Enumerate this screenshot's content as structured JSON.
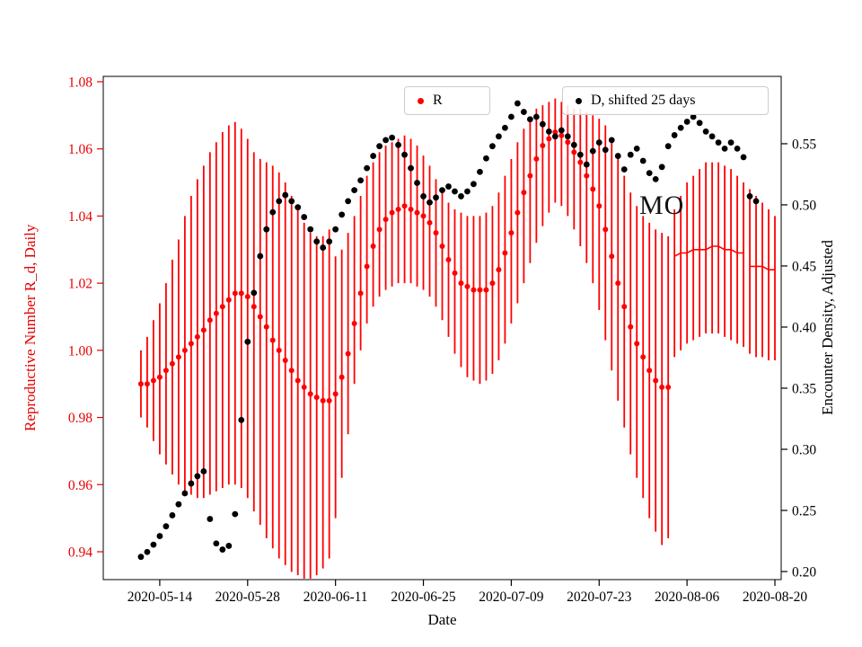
{
  "figure": {
    "background": "#ffffff"
  },
  "chart_data": {
    "type": "scatter",
    "title": "",
    "xlabel": "Date",
    "x_range": [
      "2020-05-05",
      "2020-08-21"
    ],
    "x_ticks": [
      "2020-05-14",
      "2020-05-28",
      "2020-06-11",
      "2020-06-25",
      "2020-07-09",
      "2020-07-23",
      "2020-08-06",
      "2020-08-20"
    ],
    "left_axis": {
      "label": "Reproductive Number R_d, Daily",
      "color": "#e60000",
      "range": [
        0.9317,
        1.0816
      ],
      "ticks": [
        0.94,
        0.96,
        0.98,
        1.0,
        1.02,
        1.04,
        1.06,
        1.08
      ]
    },
    "right_axis": {
      "label": "Encounter Density, Adjusted",
      "color": "#000000",
      "range": [
        0.1934,
        0.6051
      ],
      "ticks": [
        0.2,
        0.25,
        0.3,
        0.35,
        0.4,
        0.45,
        0.5,
        0.55
      ]
    },
    "annotation": {
      "text": "MO",
      "x": "2020-08-02",
      "y_left": 1.043
    },
    "series_r": {
      "name": "R",
      "color": "#ff0000",
      "axis": "left",
      "start": "2020-05-11",
      "freq": "daily",
      "marker_until": "2020-08-03",
      "line_segments": [
        [
          "2020-08-04",
          "2020-08-15"
        ],
        [
          "2020-08-16",
          "2020-08-20"
        ]
      ],
      "values": [
        0.99,
        0.99,
        0.991,
        0.992,
        0.994,
        0.996,
        0.998,
        1.0,
        1.002,
        1.004,
        1.006,
        1.009,
        1.011,
        1.013,
        1.015,
        1.017,
        1.017,
        1.016,
        1.013,
        1.01,
        1.007,
        1.003,
        1.0,
        0.997,
        0.994,
        0.991,
        0.989,
        0.987,
        0.986,
        0.985,
        0.985,
        0.987,
        0.992,
        0.999,
        1.008,
        1.017,
        1.025,
        1.031,
        1.036,
        1.039,
        1.041,
        1.042,
        1.043,
        1.042,
        1.041,
        1.04,
        1.038,
        1.035,
        1.031,
        1.027,
        1.023,
        1.02,
        1.019,
        1.018,
        1.018,
        1.018,
        1.02,
        1.024,
        1.029,
        1.035,
        1.041,
        1.047,
        1.052,
        1.057,
        1.061,
        1.063,
        1.065,
        1.064,
        1.062,
        1.059,
        1.056,
        1.052,
        1.048,
        1.043,
        1.036,
        1.028,
        1.02,
        1.013,
        1.007,
        1.002,
        0.998,
        0.994,
        0.991,
        0.989,
        0.989,
        1.028,
        1.029,
        1.029,
        1.03,
        1.03,
        1.03,
        1.031,
        1.031,
        1.03,
        1.03,
        1.029,
        1.029,
        1.025,
        1.025,
        1.025,
        1.024,
        1.024
      ],
      "err_lo": [
        0.98,
        0.977,
        0.973,
        0.969,
        0.966,
        0.963,
        0.96,
        0.958,
        0.957,
        0.956,
        0.956,
        0.957,
        0.958,
        0.959,
        0.96,
        0.96,
        0.959,
        0.956,
        0.952,
        0.948,
        0.944,
        0.941,
        0.938,
        0.936,
        0.934,
        0.933,
        0.932,
        0.932,
        0.933,
        0.935,
        0.938,
        0.95,
        0.962,
        0.975,
        0.99,
        1.0,
        1.008,
        1.013,
        1.016,
        1.018,
        1.019,
        1.02,
        1.02,
        1.02,
        1.019,
        1.018,
        1.016,
        1.013,
        1.009,
        1.004,
        0.999,
        0.995,
        0.992,
        0.991,
        0.99,
        0.991,
        0.993,
        0.997,
        1.002,
        1.008,
        1.014,
        1.02,
        1.026,
        1.032,
        1.037,
        1.041,
        1.044,
        1.043,
        1.04,
        1.036,
        1.031,
        1.026,
        1.02,
        1.012,
        1.003,
        0.994,
        0.985,
        0.977,
        0.969,
        0.962,
        0.956,
        0.95,
        0.946,
        0.942,
        0.944,
        0.998,
        1.0,
        1.002,
        1.003,
        1.004,
        1.005,
        1.005,
        1.005,
        1.004,
        1.003,
        1.002,
        1.001,
        0.999,
        0.998,
        0.998,
        0.997,
        0.997
      ],
      "err_hi": [
        1.0,
        1.004,
        1.009,
        1.014,
        1.02,
        1.027,
        1.033,
        1.04,
        1.046,
        1.051,
        1.055,
        1.059,
        1.062,
        1.065,
        1.067,
        1.068,
        1.066,
        1.063,
        1.059,
        1.057,
        1.056,
        1.055,
        1.053,
        1.05,
        1.046,
        1.042,
        1.038,
        1.035,
        1.034,
        1.034,
        1.036,
        1.028,
        1.03,
        1.035,
        1.04,
        1.046,
        1.052,
        1.056,
        1.059,
        1.061,
        1.062,
        1.063,
        1.064,
        1.063,
        1.061,
        1.058,
        1.055,
        1.051,
        1.047,
        1.044,
        1.042,
        1.041,
        1.04,
        1.04,
        1.04,
        1.041,
        1.043,
        1.047,
        1.052,
        1.057,
        1.062,
        1.066,
        1.069,
        1.072,
        1.073,
        1.074,
        1.075,
        1.074,
        1.073,
        1.072,
        1.072,
        1.071,
        1.07,
        1.069,
        1.067,
        1.063,
        1.058,
        1.052,
        1.047,
        1.043,
        1.04,
        1.038,
        1.036,
        1.035,
        1.034,
        1.042,
        1.046,
        1.05,
        1.052,
        1.054,
        1.056,
        1.056,
        1.056,
        1.055,
        1.054,
        1.052,
        1.05,
        1.048,
        1.046,
        1.044,
        1.042,
        1.04
      ]
    },
    "series_d": {
      "name": "D, shifted 25 days",
      "color": "#000000",
      "axis": "right",
      "start": "2020-05-11",
      "freq": "daily",
      "values": [
        0.212,
        0.216,
        0.222,
        0.229,
        0.237,
        0.246,
        0.255,
        0.264,
        0.272,
        0.278,
        0.282,
        0.243,
        0.223,
        0.218,
        0.221,
        0.247,
        0.324,
        0.388,
        0.428,
        0.458,
        0.48,
        0.494,
        0.503,
        0.508,
        0.503,
        0.498,
        0.49,
        0.48,
        0.47,
        0.465,
        0.47,
        0.48,
        0.492,
        0.503,
        0.512,
        0.52,
        0.53,
        0.54,
        0.548,
        0.553,
        0.555,
        0.549,
        0.541,
        0.53,
        0.518,
        0.507,
        0.502,
        0.506,
        0.512,
        0.515,
        0.511,
        0.507,
        0.511,
        0.517,
        0.527,
        0.538,
        0.548,
        0.556,
        0.563,
        0.572,
        0.583,
        0.576,
        0.57,
        0.572,
        0.566,
        0.56,
        0.556,
        0.561,
        0.556,
        0.549,
        0.541,
        0.533,
        0.544,
        0.551,
        0.545,
        0.553,
        0.54,
        0.529,
        0.541,
        0.546,
        0.536,
        0.526,
        0.521,
        0.531,
        0.548,
        0.557,
        0.563,
        0.568,
        0.572,
        0.567,
        0.56,
        0.556,
        0.551,
        0.546,
        0.551,
        0.546,
        0.539,
        0.507,
        0.503
      ]
    }
  }
}
